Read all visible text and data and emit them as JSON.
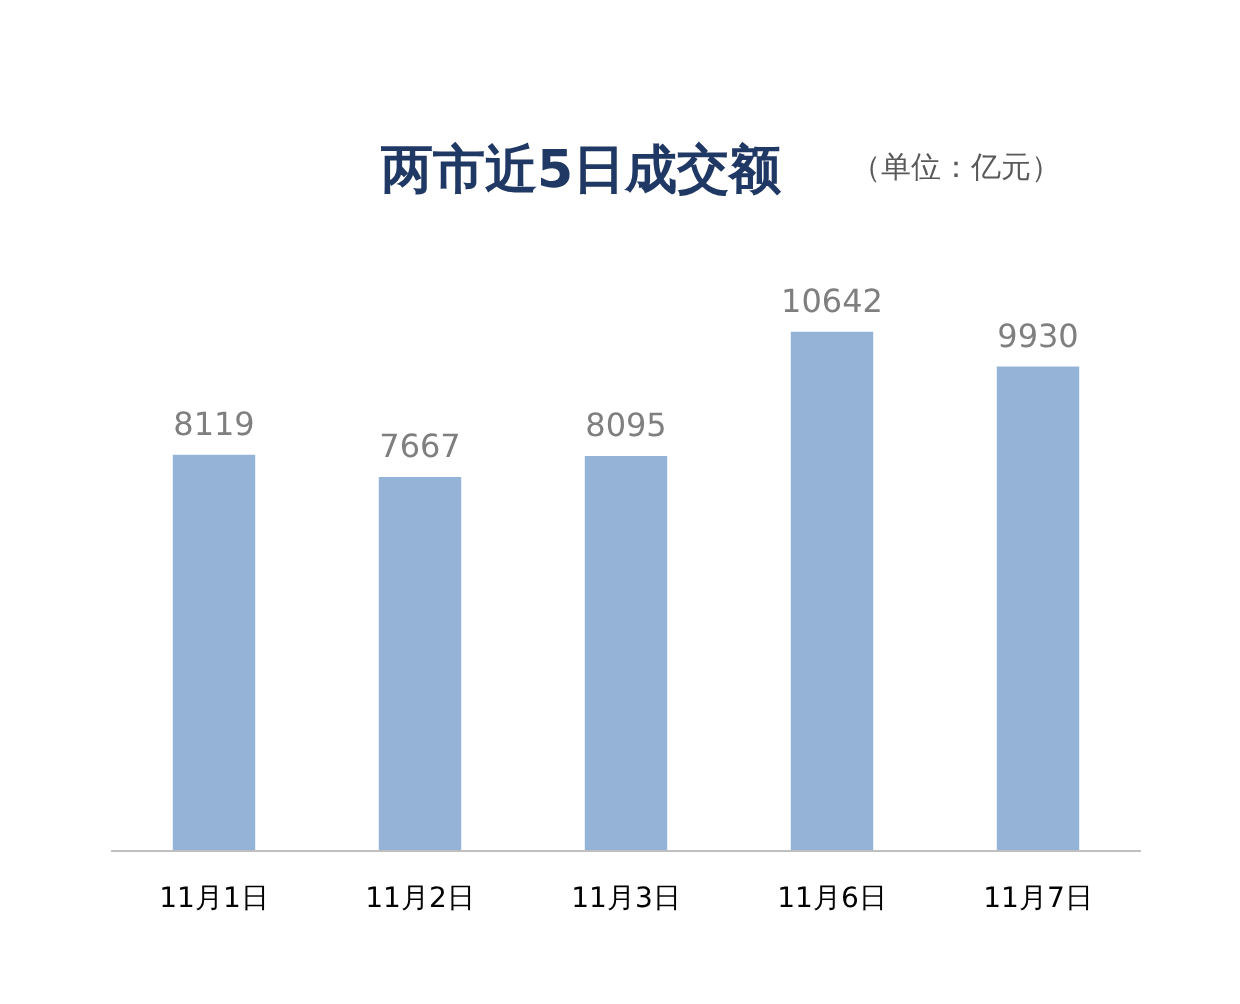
{
  "chart_data": {
    "type": "bar",
    "title": "两市近5日成交额",
    "subtitle": "（单位：亿元）",
    "categories": [
      "11月1日",
      "11月2日",
      "11月3日",
      "11月6日",
      "11月7日"
    ],
    "values": [
      8119,
      7667,
      8095,
      10642,
      9930
    ],
    "color": "#95b3d7",
    "data_labels": true,
    "grid": false
  }
}
